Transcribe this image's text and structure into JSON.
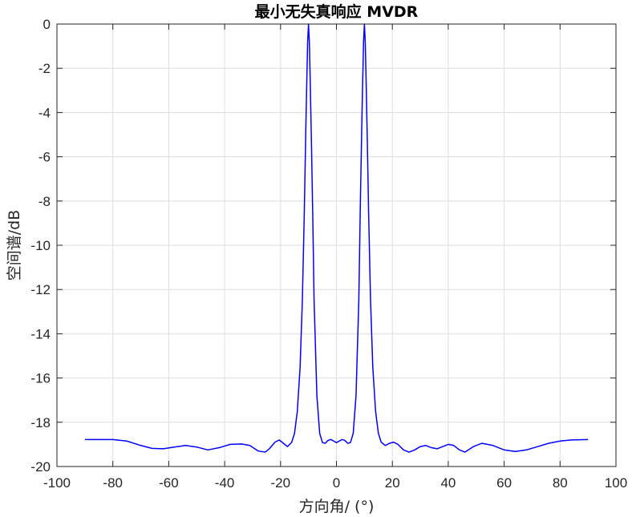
{
  "chart_data": {
    "type": "line",
    "title": "最小无失真响应 MVDR",
    "xlabel": "方向角/ (°)",
    "ylabel": "空间谱/dB",
    "xlim": [
      -100,
      100
    ],
    "ylim": [
      -20,
      0
    ],
    "xticks": [
      "-100",
      "-80",
      "-60",
      "-40",
      "-20",
      "0",
      "20",
      "40",
      "60",
      "80",
      "100"
    ],
    "yticks": [
      "0",
      "-2",
      "-4",
      "-6",
      "-8",
      "-10",
      "-12",
      "-14",
      "-16",
      "-18",
      "-20"
    ],
    "grid": true,
    "line_color": "#0000ff",
    "series": [
      {
        "x": [
          -90,
          -85,
          -80,
          -75,
          -70,
          -66,
          -62,
          -58,
          -54,
          -50,
          -46,
          -42,
          -38,
          -34,
          -31,
          -28,
          -25.5,
          -24,
          -22,
          -20.5,
          -19,
          -17.5,
          -16,
          -15,
          -14,
          -13,
          -12.2,
          -11.5,
          -11,
          -10.6,
          -10.3,
          -10,
          -9.7,
          -9.4,
          -9,
          -8.5,
          -8,
          -7,
          -6,
          -5,
          -4,
          -3,
          -2,
          -1,
          0,
          1,
          2,
          3,
          4,
          5,
          6,
          7,
          8,
          8.5,
          9,
          9.4,
          9.7,
          10,
          10.3,
          10.6,
          11,
          11.5,
          12.2,
          13,
          14,
          15,
          16,
          17.5,
          19,
          20.5,
          22,
          24,
          26,
          28,
          30,
          32,
          34,
          36,
          38,
          40,
          42,
          44,
          46,
          49,
          52,
          56,
          60,
          64,
          68,
          72,
          76,
          80,
          84,
          90
        ],
        "y": [
          -18.78,
          -18.78,
          -18.78,
          -18.85,
          -19.05,
          -19.18,
          -19.2,
          -19.12,
          -19.05,
          -19.12,
          -19.25,
          -19.15,
          -19.0,
          -18.98,
          -19.05,
          -19.3,
          -19.35,
          -19.2,
          -18.9,
          -18.8,
          -18.95,
          -19.1,
          -18.9,
          -18.5,
          -17.5,
          -15.5,
          -12.5,
          -8.5,
          -5.0,
          -2.5,
          -0.8,
          0.0,
          -0.8,
          -2.5,
          -5.0,
          -8.5,
          -12.5,
          -16.8,
          -18.5,
          -18.92,
          -18.95,
          -18.82,
          -18.78,
          -18.85,
          -18.92,
          -18.85,
          -18.78,
          -18.82,
          -18.95,
          -18.92,
          -18.5,
          -16.8,
          -12.5,
          -8.5,
          -5.0,
          -2.5,
          -0.8,
          0.0,
          -0.8,
          -2.5,
          -5.0,
          -8.5,
          -12.5,
          -15.5,
          -17.5,
          -18.5,
          -18.9,
          -19.05,
          -18.95,
          -18.9,
          -19.0,
          -19.25,
          -19.35,
          -19.25,
          -19.1,
          -19.05,
          -19.15,
          -19.2,
          -19.1,
          -19.0,
          -19.05,
          -19.25,
          -19.35,
          -19.1,
          -18.95,
          -19.05,
          -19.25,
          -19.32,
          -19.25,
          -19.1,
          -18.95,
          -18.85,
          -18.8,
          -18.78
        ]
      }
    ]
  }
}
